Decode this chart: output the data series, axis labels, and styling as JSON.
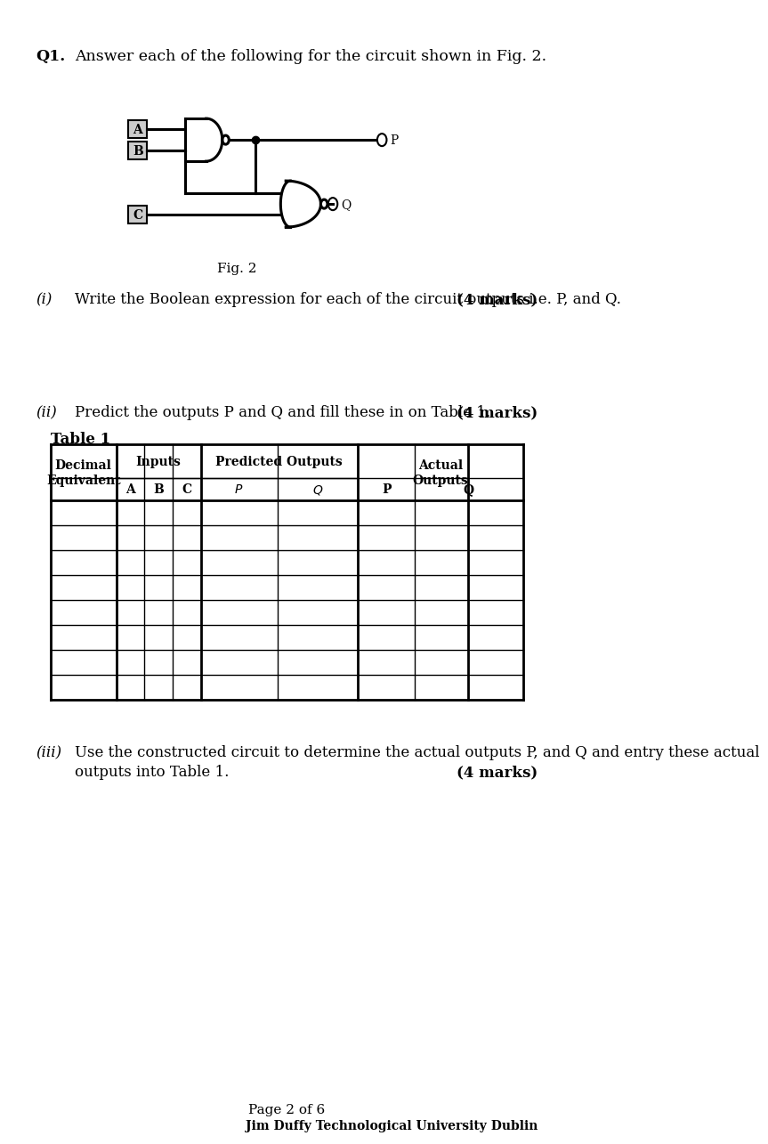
{
  "title_q1": "Q1.",
  "title_q1_text": "Answer each of the following for the circuit shown in Fig. 2.",
  "fig_caption": "Fig. 2",
  "section_i_label": "(i)",
  "section_i_text": "Write the Boolean expression for each of the circuit outputs i.e. P, and Q.",
  "section_i_marks": "(4 marks)",
  "section_ii_label": "(ii)",
  "section_ii_text": "Predict the outputs P and Q and fill these in on Table 1.",
  "section_ii_marks": "(4 marks)",
  "table_title": "Table 1",
  "table_headers_row1": [
    "Decimal\nEquivalent",
    "Inputs",
    "Predicted Outputs",
    "Actual\nOutputs"
  ],
  "table_headers_row2": [
    "",
    "A",
    "B",
    "C",
    "P",
    "Q",
    "P",
    "Q"
  ],
  "table_num_data_rows": 8,
  "section_iii_label": "(iii)",
  "section_iii_text": "Use the constructed circuit to determine the actual outputs P, and Q and entry these actual\noutputs into Table 1.",
  "section_iii_marks": "(4 marks)",
  "page_footer": "Page 2 of 6",
  "footer_right": "Jim Duffy Technological University Dublin",
  "bg_color": "#ffffff",
  "text_color": "#000000",
  "gate_color": "#000000",
  "line_color": "#000000"
}
